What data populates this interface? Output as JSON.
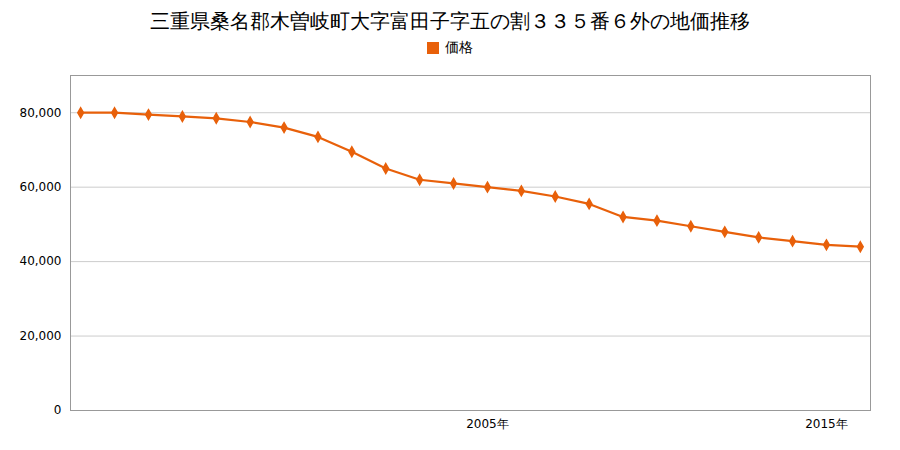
{
  "chart_data": {
    "type": "line",
    "title": "三重県桑名郡木曽岐町大字富田子字五の割３３５番６外の地価推移",
    "x": [
      1993,
      1994,
      1995,
      1996,
      1997,
      1998,
      1999,
      2000,
      2001,
      2002,
      2003,
      2004,
      2005,
      2006,
      2007,
      2008,
      2009,
      2010,
      2011,
      2012,
      2013,
      2014,
      2015,
      2016
    ],
    "series": [
      {
        "name": "価格",
        "color": "#E8600A",
        "marker": "diamond",
        "values": [
          80000,
          80000,
          79500,
          79000,
          78500,
          77500,
          76000,
          73500,
          69500,
          65000,
          62000,
          61000,
          60000,
          59000,
          57500,
          55500,
          52000,
          51000,
          49500,
          48000,
          46500,
          45500,
          44500,
          44000
        ]
      }
    ],
    "xlim": [
      1992.7,
      2016.3
    ],
    "xticks": [
      {
        "value": 2005,
        "label": "2005年"
      },
      {
        "value": 2015,
        "label": "2015年"
      }
    ],
    "ylim": [
      0,
      90000
    ],
    "yticks": [
      0,
      {
        "value": 20000,
        "label": "20,000"
      },
      {
        "value": 40000,
        "label": "40,000"
      },
      {
        "value": 60000,
        "label": "60,000"
      },
      {
        "value": 80000,
        "label": "80,000"
      }
    ],
    "grid": true,
    "legend": "top"
  }
}
